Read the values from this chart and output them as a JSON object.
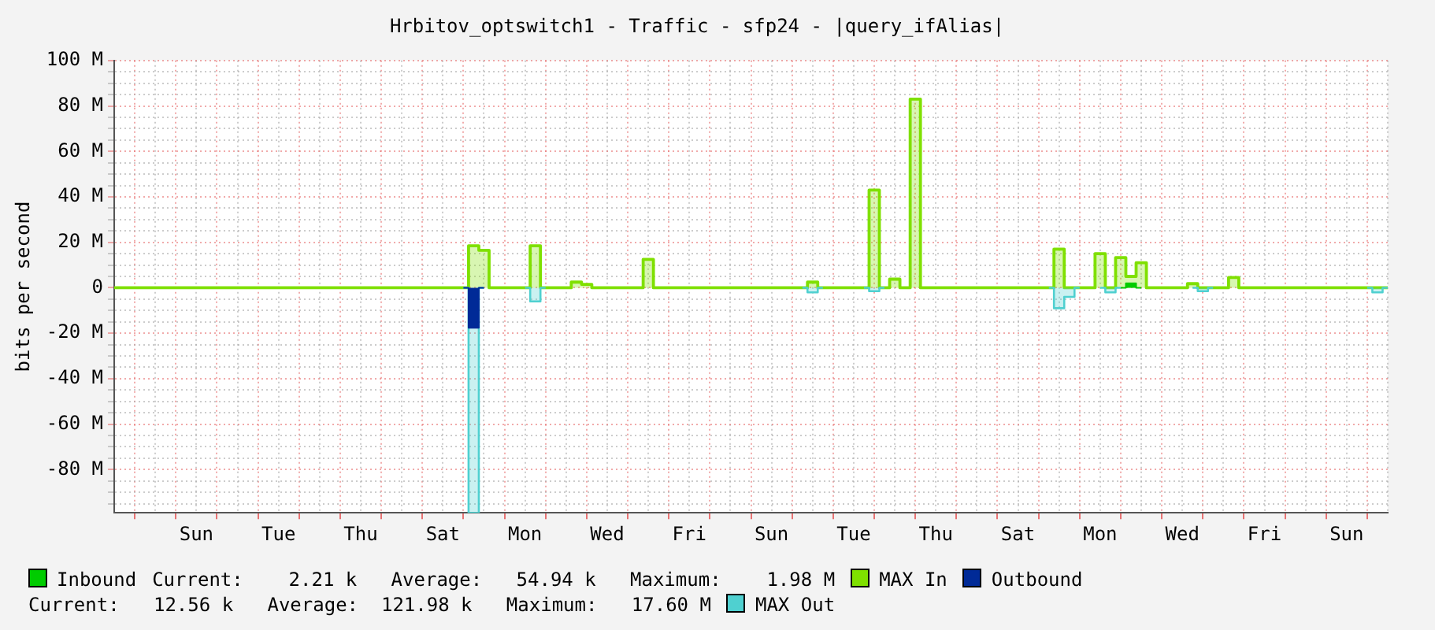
{
  "chart_data": {
    "type": "step",
    "title": "Hrbitov_optswitch1 - Traffic - sfp24 - |query_ifAlias|",
    "ylabel": "bits per second",
    "categories": [
      null,
      null,
      null,
      null,
      null,
      null,
      null,
      null,
      "Sun",
      null,
      null,
      null,
      null,
      null,
      null,
      null,
      "Tue",
      null,
      null,
      null,
      null,
      null,
      null,
      null,
      "Thu",
      null,
      null,
      null,
      null,
      null,
      null,
      null,
      "Sat",
      null,
      null,
      null,
      null,
      null,
      null,
      null,
      "Mon",
      null,
      null,
      null,
      null,
      null,
      null,
      null,
      "Wed",
      null,
      null,
      null,
      null,
      null,
      null,
      null,
      "Fri",
      null,
      null,
      null,
      null,
      null,
      null,
      null,
      "Sun",
      null,
      null,
      null,
      null,
      null,
      null,
      null,
      "Tue",
      null,
      null,
      null,
      null,
      null,
      null,
      null,
      "Thu",
      null,
      null,
      null,
      null,
      null,
      null,
      null,
      "Sat",
      null,
      null,
      null,
      null,
      null,
      null,
      null,
      "Mon",
      null,
      null,
      null,
      null,
      null,
      null,
      null,
      "Wed",
      null,
      null,
      null,
      null,
      null,
      null,
      null,
      "Fri",
      null,
      null,
      null,
      null,
      null,
      null,
      null,
      "Sun",
      null,
      null,
      null,
      null
    ],
    "ylim": [
      -99,
      100
    ],
    "yticks": [
      {
        "value": -95,
        "label": null
      },
      {
        "value": -90,
        "label": null
      },
      {
        "value": -85,
        "label": null
      },
      {
        "value": -80,
        "label": "-80 M"
      },
      {
        "value": -75,
        "label": null
      },
      {
        "value": -70,
        "label": null
      },
      {
        "value": -65,
        "label": null
      },
      {
        "value": -60,
        "label": "-60 M"
      },
      {
        "value": -55,
        "label": null
      },
      {
        "value": -50,
        "label": null
      },
      {
        "value": -45,
        "label": null
      },
      {
        "value": -40,
        "label": "-40 M"
      },
      {
        "value": -35,
        "label": null
      },
      {
        "value": -30,
        "label": null
      },
      {
        "value": -25,
        "label": null
      },
      {
        "value": -20,
        "label": "-20 M"
      },
      {
        "value": -15,
        "label": null
      },
      {
        "value": -10,
        "label": null
      },
      {
        "value": -5,
        "label": null
      },
      {
        "value": 0,
        "label": "0"
      },
      {
        "value": 5,
        "label": null
      },
      {
        "value": 10,
        "label": null
      },
      {
        "value": 15,
        "label": null
      },
      {
        "value": 20,
        "label": "20 M"
      },
      {
        "value": 25,
        "label": null
      },
      {
        "value": 30,
        "label": null
      },
      {
        "value": 35,
        "label": null
      },
      {
        "value": 40,
        "label": "40 M"
      },
      {
        "value": 45,
        "label": null
      },
      {
        "value": 50,
        "label": null
      },
      {
        "value": 55,
        "label": null
      },
      {
        "value": 60,
        "label": "60 M"
      },
      {
        "value": 65,
        "label": null
      },
      {
        "value": 70,
        "label": null
      },
      {
        "value": 75,
        "label": null
      },
      {
        "value": 80,
        "label": "80 M"
      },
      {
        "value": 85,
        "label": null
      },
      {
        "value": 90,
        "label": null
      },
      {
        "value": 95,
        "label": null
      },
      {
        "value": 100,
        "label": "100 M"
      }
    ],
    "grid": true,
    "legend": "bottom",
    "annotations": [
      "Current:    2.21 k   Average:   54.94 k   Maximum:    1.98 M",
      "Current:   12.56 k   Average:  121.98 k   Maximum:   17.60 M"
    ],
    "series": [
      {
        "name": "Inbound",
        "type": "area",
        "color": "#00cc00",
        "values": [
          null,
          null,
          null,
          null,
          null,
          null,
          null,
          null,
          null,
          null,
          null,
          null,
          null,
          null,
          null,
          null,
          null,
          null,
          null,
          null,
          null,
          null,
          null,
          null,
          null,
          null,
          null,
          null,
          null,
          null,
          null,
          null,
          null,
          null,
          null,
          null,
          null,
          null,
          null,
          null,
          null,
          null,
          null,
          null,
          null,
          null,
          null,
          null,
          null,
          null,
          null,
          null,
          null,
          null,
          null,
          null,
          null,
          null,
          null,
          null,
          null,
          null,
          null,
          null,
          null,
          null,
          null,
          null,
          null,
          null,
          null,
          null,
          null,
          null,
          null,
          null,
          null,
          null,
          null,
          null,
          null,
          null,
          null,
          null,
          null,
          null,
          null,
          null,
          null,
          null,
          null,
          null,
          null,
          null,
          null,
          null,
          null,
          null,
          0,
          2,
          0,
          null,
          null,
          null,
          null,
          null,
          null,
          null,
          null,
          null,
          null,
          null,
          null,
          null,
          null,
          null,
          null,
          null,
          null,
          null,
          null,
          null,
          null,
          null,
          null
        ]
      },
      {
        "name": "MAX In",
        "type": "step",
        "color": "#7fe000",
        "values": [
          0,
          0,
          0,
          0,
          0,
          0,
          0,
          0,
          0,
          0,
          0,
          0,
          0,
          0,
          0,
          0,
          0,
          0,
          0,
          0,
          0,
          0,
          0,
          0,
          0,
          0,
          0,
          0,
          0,
          0,
          0,
          0,
          0,
          0,
          0,
          18.5,
          16.5,
          0,
          0,
          0,
          0,
          18.5,
          0,
          0,
          0,
          2.5,
          1.5,
          0,
          0,
          0,
          0,
          0,
          12.5,
          0,
          0,
          0,
          0,
          0,
          0,
          0,
          0,
          0,
          0,
          0,
          0,
          0,
          0,
          0,
          2.5,
          0,
          0,
          0,
          0,
          0,
          43,
          0,
          3.8,
          0,
          83,
          0,
          0,
          0,
          0,
          0,
          0,
          0,
          0,
          0,
          0,
          0,
          0,
          0,
          17,
          0,
          0,
          0,
          15,
          0,
          13.3,
          5,
          11,
          0,
          0,
          0,
          0,
          1.8,
          0,
          0,
          0,
          4.5,
          0,
          0,
          0,
          0,
          0,
          0,
          0,
          0,
          0,
          0,
          0,
          0,
          0,
          0,
          0
        ]
      },
      {
        "name": "Outbound",
        "type": "area",
        "color": "#002a97",
        "values": [
          null,
          null,
          null,
          null,
          null,
          null,
          null,
          null,
          null,
          null,
          null,
          null,
          null,
          null,
          null,
          null,
          null,
          null,
          null,
          null,
          null,
          null,
          null,
          null,
          null,
          null,
          null,
          null,
          null,
          null,
          null,
          null,
          null,
          null,
          0,
          -17.6,
          0,
          null,
          null,
          null,
          null,
          null,
          null,
          null,
          null,
          null,
          null,
          null,
          null,
          null,
          null,
          null,
          null,
          null,
          null,
          null,
          null,
          null,
          null,
          null,
          null,
          null,
          null,
          null,
          null,
          null,
          null,
          null,
          null,
          null,
          null,
          null,
          null,
          null,
          null,
          null,
          null,
          null,
          null,
          null,
          null,
          null,
          null,
          null,
          null,
          null,
          null,
          null,
          null,
          null,
          null,
          null,
          null,
          null,
          null,
          null,
          null,
          null,
          null,
          null,
          null,
          null,
          null,
          null,
          null,
          null,
          null,
          null,
          null,
          null,
          null,
          null,
          null,
          null,
          null,
          null,
          null,
          null,
          null,
          null,
          null,
          null,
          null,
          null,
          null
        ]
      },
      {
        "name": "MAX Out",
        "type": "step",
        "color": "#4fd0d0",
        "values": [
          null,
          null,
          null,
          null,
          null,
          null,
          null,
          null,
          null,
          null,
          null,
          null,
          null,
          null,
          null,
          null,
          null,
          null,
          null,
          null,
          null,
          null,
          null,
          null,
          null,
          null,
          null,
          null,
          null,
          null,
          null,
          null,
          null,
          null,
          0,
          -99,
          0,
          null,
          null,
          null,
          0,
          -6,
          0,
          null,
          null,
          null,
          null,
          null,
          null,
          null,
          null,
          null,
          null,
          null,
          null,
          null,
          null,
          null,
          null,
          null,
          null,
          null,
          null,
          null,
          null,
          null,
          null,
          0,
          -2,
          0,
          null,
          null,
          null,
          0,
          -1.5,
          0,
          null,
          null,
          null,
          null,
          null,
          null,
          null,
          null,
          null,
          null,
          null,
          null,
          null,
          null,
          null,
          0,
          -9,
          -4,
          0,
          null,
          0,
          -2,
          0,
          null,
          null,
          null,
          null,
          null,
          null,
          0,
          -1.5,
          0,
          null,
          null,
          null,
          null,
          null,
          null,
          null,
          null,
          null,
          null,
          null,
          null,
          null,
          null,
          0,
          -2,
          0
        ]
      }
    ]
  }
}
